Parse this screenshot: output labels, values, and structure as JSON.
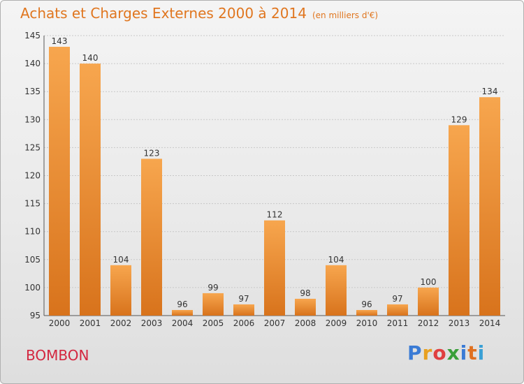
{
  "chart_data": {
    "type": "bar",
    "title": "Achats et Charges Externes 2000 à 2014",
    "subtitle": "(en milliers d'€)",
    "categories": [
      "2000",
      "2001",
      "2002",
      "2003",
      "2004",
      "2005",
      "2006",
      "2007",
      "2008",
      "2009",
      "2010",
      "2011",
      "2012",
      "2013",
      "2014"
    ],
    "values": [
      143,
      140,
      104,
      123,
      96,
      99,
      97,
      112,
      98,
      104,
      96,
      97,
      100,
      129,
      134
    ],
    "ylim": [
      95,
      145
    ],
    "yticks": [
      95,
      100,
      105,
      110,
      115,
      120,
      125,
      130,
      135,
      140,
      145
    ],
    "grid": true,
    "bar_color": "#f0902e",
    "xlabel": "",
    "ylabel": ""
  },
  "commune": "BOMBON",
  "logo": {
    "letters": [
      "P",
      "r",
      "o",
      "x",
      "i",
      "t",
      "i"
    ],
    "colors": [
      "#3a7bd5",
      "#e8a020",
      "#e04040",
      "#3a9f3a",
      "#3a7bd5",
      "#e07020",
      "#3aa0d5"
    ]
  },
  "colors": {
    "title": "#e0761f",
    "commune": "#d3263f"
  }
}
